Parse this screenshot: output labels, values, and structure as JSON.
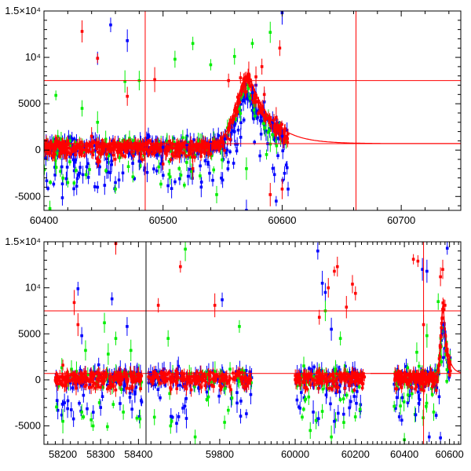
{
  "chart_data": [
    {
      "type": "scatter",
      "panel": "top",
      "xlim": [
        60400,
        60750
      ],
      "ylim": [
        -6500,
        15000
      ],
      "x_ticks": [
        60400,
        60500,
        60600,
        60700
      ],
      "x_tick_labels": [
        "60400",
        "60500",
        "60600",
        "60700"
      ],
      "y_ticks": [
        -5000,
        0,
        5000,
        10000,
        15000
      ],
      "y_tick_labels": [
        "-5000",
        "0",
        "5000",
        "10⁴",
        "1.5×10⁴"
      ],
      "grid": false,
      "reference_lines": {
        "horizontal": [
          7500,
          700
        ],
        "vertical": [
          60485,
          60662
        ]
      },
      "model_curve": {
        "baseline": 700,
        "peak": 8200,
        "t_peak": 60572,
        "rise": 10,
        "decay": 18
      },
      "series": [
        {
          "color": "#0000ff",
          "points": [
            [
              60456,
              13500
            ],
            [
              60445,
              9900
            ],
            [
              60470,
              11800
            ],
            [
              60578,
              7000
            ],
            [
              60575,
              6200
            ],
            [
              60585,
              5200
            ],
            [
              60592,
              3000
            ],
            [
              60600,
              1500
            ],
            [
              60602,
              -2500
            ],
            [
              60605,
              -4200
            ],
            [
              60560,
              2000
            ],
            [
              60552,
              1200
            ],
            [
              60540,
              800
            ],
            [
              60520,
              600
            ],
            [
              60500,
              300
            ],
            [
              60480,
              -1200
            ],
            [
              60460,
              -3500
            ],
            [
              60445,
              -4000
            ],
            [
              60415,
              -1800
            ],
            [
              60430,
              -2500
            ],
            [
              60600,
              14800
            ],
            [
              60595,
              -5500
            ],
            [
              60570,
              -6500
            ]
          ]
        },
        {
          "color": "#00ee00",
          "points": [
            [
              60410,
              5900
            ],
            [
              60432,
              4500
            ],
            [
              60445,
              3000
            ],
            [
              60460,
              -4200
            ],
            [
              60468,
              7400
            ],
            [
              60510,
              9800
            ],
            [
              60525,
              11500
            ],
            [
              60560,
              10100
            ],
            [
              60575,
              11500
            ],
            [
              60590,
              12700
            ],
            [
              60570,
              -2000
            ],
            [
              60545,
              -4800
            ],
            [
              60505,
              -2600
            ],
            [
              60420,
              -3500
            ],
            [
              60405,
              -6300
            ],
            [
              60480,
              7500
            ],
            [
              60540,
              9200
            ]
          ]
        },
        {
          "color": "#ff0000",
          "points": [
            [
              60432,
              12800
            ],
            [
              60445,
              9900
            ],
            [
              60470,
              5800
            ],
            [
              60493,
              7600
            ],
            [
              60565,
              7800
            ],
            [
              60572,
              8200
            ],
            [
              60578,
              7900
            ],
            [
              60585,
              6000
            ],
            [
              60595,
              3500
            ],
            [
              60598,
              11000
            ],
            [
              60590,
              -4800
            ],
            [
              60600,
              -4200
            ],
            [
              60525,
              -2000
            ],
            [
              60500,
              -1500
            ],
            [
              60440,
              1500
            ],
            [
              60420,
              1000
            ],
            [
              60410,
              700
            ],
            [
              60583,
              9000
            ],
            [
              60555,
              7500
            ]
          ]
        }
      ]
    },
    {
      "type": "scatter",
      "panel": "bottom",
      "segments": [
        {
          "xlim": [
            58150,
            58420
          ],
          "x_ticks": [
            58200,
            58300,
            58400
          ],
          "x_tick_labels": [
            "58200",
            "58300",
            "58400"
          ]
        },
        {
          "xlim": [
            59650,
            59880
          ],
          "x_ticks": [
            59800
          ],
          "x_tick_labels": [
            "59800"
          ]
        },
        {
          "xlim": [
            59880,
            60250
          ],
          "x_ticks": [
            60000,
            60200
          ],
          "x_tick_labels": [
            "60000",
            "60200"
          ]
        },
        {
          "xlim": [
            60250,
            60650
          ],
          "x_ticks": [
            60400,
            60600
          ],
          "x_tick_labels": [
            "60400",
            "60600"
          ]
        }
      ],
      "ylim": [
        -7000,
        15000
      ],
      "y_ticks": [
        -5000,
        0,
        5000,
        10000,
        15000
      ],
      "y_tick_labels": [
        "-5000",
        "0",
        "5000",
        "10⁴",
        "1.5×10⁴"
      ],
      "grid": false,
      "reference_lines": {
        "horizontal": [
          7500,
          700
        ],
        "vertical": [
          60485
        ]
      },
      "model_curve": {
        "baseline": 700,
        "peak": 8200,
        "t_peak": 60572,
        "rise": 10,
        "decay": 18
      },
      "observing_windows": [
        [
          58180,
          58410
        ],
        [
          59655,
          59865
        ],
        [
          60000,
          60230
        ],
        [
          60355,
          60605
        ]
      ],
      "series": [
        {
          "color": "#0000ff",
          "points": [
            [
              58240,
              9900
            ],
            [
              58330,
              8800
            ],
            [
              58370,
              5800
            ],
            [
              58250,
              4800
            ],
            [
              58300,
              -3000
            ],
            [
              59805,
              8700
            ],
            [
              60075,
              14000
            ],
            [
              60090,
              10500
            ],
            [
              60100,
              9500
            ],
            [
              60120,
              5500
            ],
            [
              60060,
              -3500
            ],
            [
              60130,
              -4500
            ],
            [
              60480,
              12000
            ],
            [
              60500,
              11800
            ],
            [
              60590,
              14300
            ],
            [
              60575,
              6000
            ],
            [
              60580,
              5200
            ],
            [
              60450,
              -3800
            ],
            [
              60510,
              -6200
            ],
            [
              60560,
              -6300
            ]
          ]
        },
        {
          "color": "#00ee00",
          "points": [
            [
              58260,
              3200
            ],
            [
              58320,
              2800
            ],
            [
              58340,
              4500
            ],
            [
              58310,
              6200
            ],
            [
              58380,
              3200
            ],
            [
              58250,
              -3500
            ],
            [
              58280,
              -5000
            ],
            [
              58200,
              -4500
            ],
            [
              58360,
              -3500
            ],
            [
              59730,
              14200
            ],
            [
              59695,
              4500
            ],
            [
              59840,
              5800
            ],
            [
              59750,
              -6200
            ],
            [
              59700,
              -5000
            ],
            [
              60050,
              -5500
            ],
            [
              60100,
              7500
            ],
            [
              60150,
              4500
            ],
            [
              60120,
              -6200
            ],
            [
              60455,
              3000
            ],
            [
              60500,
              4800
            ],
            [
              60550,
              8500
            ],
            [
              60530,
              -3500
            ],
            [
              60400,
              -6500
            ]
          ]
        },
        {
          "color": "#ff0000",
          "points": [
            [
              58230,
              8400
            ],
            [
              58240,
              6000
            ],
            [
              58340,
              14800
            ],
            [
              58200,
              1600
            ],
            [
              59720,
              12300
            ],
            [
              59675,
              8100
            ],
            [
              59790,
              8100
            ],
            [
              60130,
              11800
            ],
            [
              60140,
              12300
            ],
            [
              60110,
              10000
            ],
            [
              60190,
              10400
            ],
            [
              60200,
              9400
            ],
            [
              60170,
              7900
            ],
            [
              60080,
              6800
            ],
            [
              60440,
              13100
            ],
            [
              60460,
              12900
            ],
            [
              60570,
              12000
            ],
            [
              60560,
              11200
            ],
            [
              60580,
              8100
            ],
            [
              60575,
              7600
            ],
            [
              60485,
              6000
            ]
          ]
        }
      ]
    }
  ]
}
